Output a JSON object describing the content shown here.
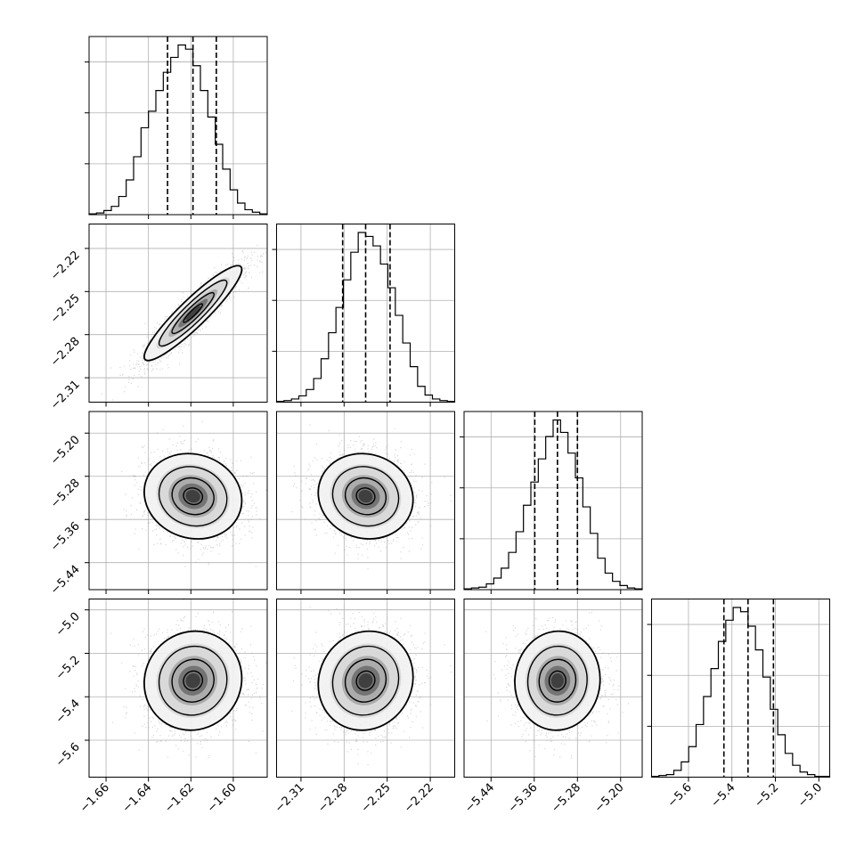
{
  "chart_data": {
    "type": "corner",
    "title": "",
    "parameters": [
      {
        "xlim": [
          -1.668,
          -1.584
        ],
        "ticks": [
          -1.66,
          -1.64,
          -1.62,
          -1.6
        ],
        "tick_labels": [
          "−1.66",
          "−1.64",
          "−1.62",
          "−1.60"
        ],
        "quantiles": [
          -1.631,
          -1.619,
          -1.608
        ]
      },
      {
        "xlim": [
          -2.327,
          -2.203
        ],
        "ticks": [
          -2.31,
          -2.28,
          -2.25,
          -2.22
        ],
        "tick_labels": [
          "−2.31",
          "−2.28",
          "−2.25",
          "−2.22"
        ],
        "quantiles": [
          -2.281,
          -2.265,
          -2.248
        ]
      },
      {
        "xlim": [
          -5.49,
          -5.16
        ],
        "ticks": [
          -5.44,
          -5.36,
          -5.28,
          -5.2
        ],
        "tick_labels": [
          "−5.44",
          "−5.36",
          "−5.28",
          "−5.20"
        ],
        "quantiles": [
          -5.359,
          -5.317,
          -5.28
        ]
      },
      {
        "xlim": [
          -5.77,
          -4.95
        ],
        "ticks": [
          -5.6,
          -5.4,
          -5.2,
          -5.0
        ],
        "tick_labels": [
          "−5.6",
          "−5.4",
          "−5.2",
          "−5.0"
        ],
        "quantiles": [
          -5.437,
          -5.326,
          -5.209
        ]
      }
    ],
    "histograms": [
      [
        1,
        2,
        5,
        10,
        22,
        42,
        70,
        105,
        125,
        150,
        172,
        190,
        205,
        200,
        180,
        150,
        118,
        85,
        55,
        30,
        14,
        6,
        3,
        1
      ],
      [
        1,
        2,
        4,
        8,
        16,
        30,
        55,
        88,
        120,
        155,
        190,
        215,
        210,
        198,
        175,
        145,
        110,
        75,
        45,
        20,
        9,
        4,
        2,
        1
      ],
      [
        1,
        2,
        3,
        7,
        14,
        26,
        45,
        70,
        102,
        130,
        158,
        185,
        205,
        190,
        165,
        135,
        100,
        68,
        38,
        20,
        10,
        5,
        2,
        1
      ],
      [
        1,
        2,
        3,
        8,
        18,
        36,
        62,
        95,
        128,
        160,
        185,
        200,
        195,
        178,
        150,
        118,
        80,
        50,
        28,
        14,
        6,
        3,
        1,
        1
      ]
    ],
    "correlations": {
      "1-0": 0.92,
      "2-0": -0.1,
      "2-1": -0.08,
      "3-0": 0.05,
      "3-1": 0.08,
      "3-2": 0.03
    },
    "grid": true,
    "legend": "none"
  }
}
